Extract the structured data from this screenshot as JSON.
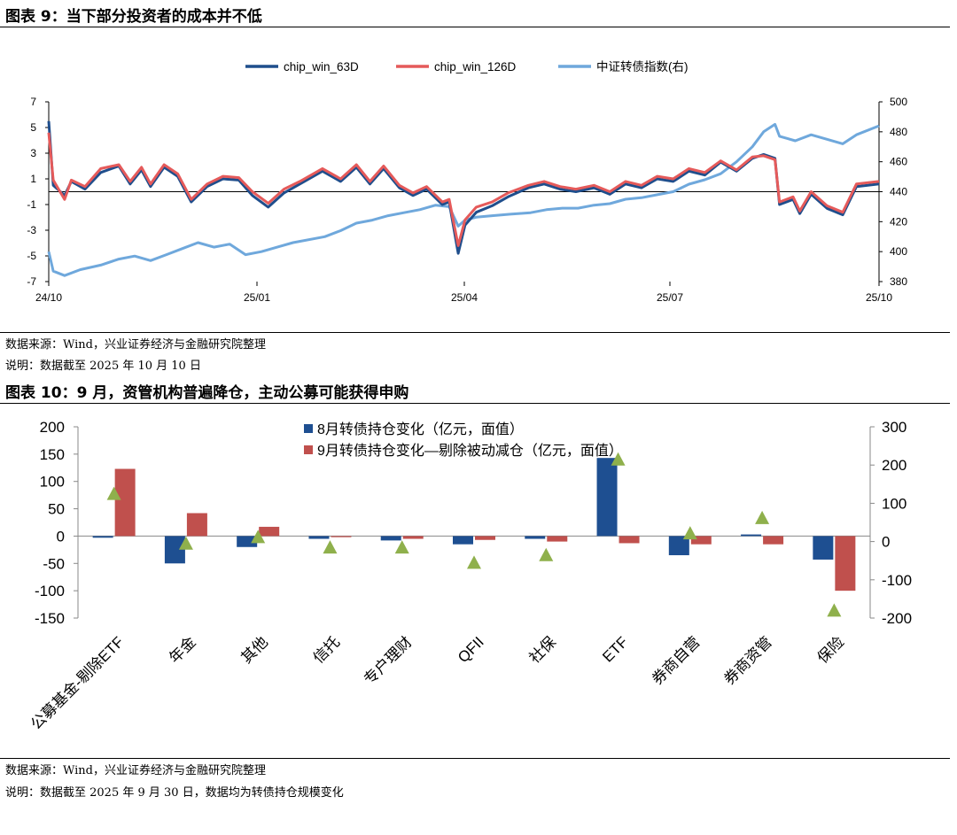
{
  "figure9": {
    "title": "图表 9：当下部分投资者的成本并不低",
    "source": "数据来源：Wind，兴业证券经济与金融研究院整理",
    "note": "说明：数据截至 2025 年 10 月 10 日"
  },
  "figure10": {
    "title": "图表 10：9 月，资管机构普遍降仓，主动公募可能获得申购",
    "source": "数据来源：Wind，兴业证券经济与金融研究院整理",
    "note": "说明：数据截至 2025 年 9 月 30 日，数据均为转债持仓规模变化"
  },
  "chart_data": [
    {
      "type": "line",
      "x_ticks": [
        "24/10",
        "25/01",
        "25/04",
        "25/07",
        "25/10"
      ],
      "xlim": [
        "2024-10-08",
        "2025-10-10"
      ],
      "ylim": [
        -7,
        7
      ],
      "y_ticks": [
        -7,
        -5,
        -3,
        -1,
        1,
        3,
        5,
        7
      ],
      "y2lim": [
        380,
        500
      ],
      "y2_ticks": [
        380,
        400,
        420,
        440,
        460,
        480,
        500
      ],
      "legend_position": "top-center",
      "grid": false,
      "series": [
        {
          "name": "chip_win_63D",
          "axis": "left",
          "color": "#1f4e8c",
          "points": [
            [
              "2024-10-08",
              5.5
            ],
            [
              "2024-10-10",
              0.5
            ],
            [
              "2024-10-15",
              -0.3
            ],
            [
              "2024-10-18",
              0.8
            ],
            [
              "2024-10-24",
              0.2
            ],
            [
              "2024-10-31",
              1.5
            ],
            [
              "2024-11-08",
              2.0
            ],
            [
              "2024-11-13",
              0.6
            ],
            [
              "2024-11-18",
              1.7
            ],
            [
              "2024-11-22",
              0.4
            ],
            [
              "2024-11-28",
              1.9
            ],
            [
              "2024-12-04",
              1.2
            ],
            [
              "2024-12-10",
              -0.8
            ],
            [
              "2024-12-17",
              0.4
            ],
            [
              "2024-12-24",
              1.0
            ],
            [
              "2024-12-31",
              0.9
            ],
            [
              "2025-01-06",
              -0.3
            ],
            [
              "2025-01-13",
              -1.2
            ],
            [
              "2025-01-20",
              -0.1
            ],
            [
              "2025-01-27",
              0.6
            ],
            [
              "2025-02-06",
              1.6
            ],
            [
              "2025-02-14",
              0.8
            ],
            [
              "2025-02-21",
              1.9
            ],
            [
              "2025-02-27",
              0.6
            ],
            [
              "2025-03-05",
              1.8
            ],
            [
              "2025-03-12",
              0.3
            ],
            [
              "2025-03-18",
              -0.3
            ],
            [
              "2025-03-24",
              0.2
            ],
            [
              "2025-03-31",
              -1.0
            ],
            [
              "2025-04-03",
              -0.8
            ],
            [
              "2025-04-07",
              -4.8
            ],
            [
              "2025-04-10",
              -2.6
            ],
            [
              "2025-04-15",
              -1.6
            ],
            [
              "2025-04-22",
              -1.1
            ],
            [
              "2025-04-29",
              -0.4
            ],
            [
              "2025-05-08",
              0.3
            ],
            [
              "2025-05-15",
              0.6
            ],
            [
              "2025-05-22",
              0.2
            ],
            [
              "2025-05-29",
              0.0
            ],
            [
              "2025-06-06",
              0.3
            ],
            [
              "2025-06-13",
              -0.2
            ],
            [
              "2025-06-20",
              0.6
            ],
            [
              "2025-06-27",
              0.3
            ],
            [
              "2025-07-04",
              1.0
            ],
            [
              "2025-07-11",
              0.8
            ],
            [
              "2025-07-18",
              1.6
            ],
            [
              "2025-07-25",
              1.3
            ],
            [
              "2025-08-01",
              2.3
            ],
            [
              "2025-08-08",
              1.6
            ],
            [
              "2025-08-15",
              2.6
            ],
            [
              "2025-08-20",
              2.9
            ],
            [
              "2025-08-25",
              2.6
            ],
            [
              "2025-08-27",
              -1.0
            ],
            [
              "2025-09-02",
              -0.6
            ],
            [
              "2025-09-05",
              -1.7
            ],
            [
              "2025-09-10",
              -0.2
            ],
            [
              "2025-09-17",
              -1.3
            ],
            [
              "2025-09-24",
              -1.8
            ],
            [
              "2025-09-30",
              0.4
            ],
            [
              "2025-10-10",
              0.6
            ]
          ]
        },
        {
          "name": "chip_win_126D",
          "axis": "left",
          "color": "#e55a5a",
          "points": [
            [
              "2024-10-08",
              4.6
            ],
            [
              "2024-10-10",
              0.9
            ],
            [
              "2024-10-15",
              -0.6
            ],
            [
              "2024-10-18",
              0.9
            ],
            [
              "2024-10-24",
              0.4
            ],
            [
              "2024-10-31",
              1.8
            ],
            [
              "2024-11-08",
              2.1
            ],
            [
              "2024-11-13",
              0.8
            ],
            [
              "2024-11-18",
              1.9
            ],
            [
              "2024-11-22",
              0.6
            ],
            [
              "2024-11-28",
              2.1
            ],
            [
              "2024-12-04",
              1.4
            ],
            [
              "2024-12-10",
              -0.6
            ],
            [
              "2024-12-17",
              0.6
            ],
            [
              "2024-12-24",
              1.2
            ],
            [
              "2024-12-31",
              1.1
            ],
            [
              "2025-01-06",
              0.0
            ],
            [
              "2025-01-13",
              -0.9
            ],
            [
              "2025-01-20",
              0.2
            ],
            [
              "2025-01-27",
              0.8
            ],
            [
              "2025-02-06",
              1.8
            ],
            [
              "2025-02-14",
              1.0
            ],
            [
              "2025-02-21",
              2.1
            ],
            [
              "2025-02-27",
              0.8
            ],
            [
              "2025-03-05",
              2.0
            ],
            [
              "2025-03-12",
              0.5
            ],
            [
              "2025-03-18",
              -0.1
            ],
            [
              "2025-03-24",
              0.4
            ],
            [
              "2025-03-31",
              -0.8
            ],
            [
              "2025-04-03",
              -0.6
            ],
            [
              "2025-04-07",
              -4.2
            ],
            [
              "2025-04-10",
              -2.2
            ],
            [
              "2025-04-15",
              -1.2
            ],
            [
              "2025-04-22",
              -0.8
            ],
            [
              "2025-04-29",
              -0.1
            ],
            [
              "2025-05-08",
              0.5
            ],
            [
              "2025-05-15",
              0.8
            ],
            [
              "2025-05-22",
              0.4
            ],
            [
              "2025-05-29",
              0.2
            ],
            [
              "2025-06-06",
              0.5
            ],
            [
              "2025-06-13",
              0.0
            ],
            [
              "2025-06-20",
              0.8
            ],
            [
              "2025-06-27",
              0.5
            ],
            [
              "2025-07-04",
              1.2
            ],
            [
              "2025-07-11",
              1.0
            ],
            [
              "2025-07-18",
              1.8
            ],
            [
              "2025-07-25",
              1.5
            ],
            [
              "2025-08-01",
              2.4
            ],
            [
              "2025-08-08",
              1.7
            ],
            [
              "2025-08-15",
              2.7
            ],
            [
              "2025-08-20",
              2.8
            ],
            [
              "2025-08-25",
              2.5
            ],
            [
              "2025-08-27",
              -0.8
            ],
            [
              "2025-09-02",
              -0.4
            ],
            [
              "2025-09-05",
              -1.5
            ],
            [
              "2025-09-10",
              0.0
            ],
            [
              "2025-09-17",
              -1.1
            ],
            [
              "2025-09-24",
              -1.6
            ],
            [
              "2025-09-30",
              0.6
            ],
            [
              "2025-10-10",
              0.8
            ]
          ]
        },
        {
          "name": "中证转债指数(右)",
          "axis": "right",
          "color": "#6fa8dc",
          "points": [
            [
              "2024-10-08",
              400
            ],
            [
              "2024-10-10",
              387
            ],
            [
              "2024-10-15",
              384
            ],
            [
              "2024-10-22",
              388
            ],
            [
              "2024-10-31",
              391
            ],
            [
              "2024-11-08",
              395
            ],
            [
              "2024-11-15",
              397
            ],
            [
              "2024-11-22",
              394
            ],
            [
              "2024-11-29",
              398
            ],
            [
              "2024-12-06",
              402
            ],
            [
              "2024-12-13",
              406
            ],
            [
              "2024-12-20",
              403
            ],
            [
              "2024-12-27",
              405
            ],
            [
              "2025-01-03",
              398
            ],
            [
              "2025-01-10",
              400
            ],
            [
              "2025-01-17",
              403
            ],
            [
              "2025-01-24",
              406
            ],
            [
              "2025-02-07",
              410
            ],
            [
              "2025-02-14",
              414
            ],
            [
              "2025-02-21",
              419
            ],
            [
              "2025-02-28",
              421
            ],
            [
              "2025-03-07",
              424
            ],
            [
              "2025-03-14",
              426
            ],
            [
              "2025-03-21",
              428
            ],
            [
              "2025-03-28",
              431
            ],
            [
              "2025-04-03",
              430
            ],
            [
              "2025-04-07",
              417
            ],
            [
              "2025-04-10",
              421
            ],
            [
              "2025-04-15",
              423
            ],
            [
              "2025-04-22",
              424
            ],
            [
              "2025-04-30",
              425
            ],
            [
              "2025-05-09",
              426
            ],
            [
              "2025-05-16",
              428
            ],
            [
              "2025-05-23",
              429
            ],
            [
              "2025-05-30",
              429
            ],
            [
              "2025-06-06",
              431
            ],
            [
              "2025-06-13",
              432
            ],
            [
              "2025-06-20",
              435
            ],
            [
              "2025-06-27",
              436
            ],
            [
              "2025-07-04",
              438
            ],
            [
              "2025-07-11",
              440
            ],
            [
              "2025-07-18",
              445
            ],
            [
              "2025-07-25",
              448
            ],
            [
              "2025-08-01",
              452
            ],
            [
              "2025-08-08",
              460
            ],
            [
              "2025-08-15",
              470
            ],
            [
              "2025-08-20",
              480
            ],
            [
              "2025-08-25",
              485
            ],
            [
              "2025-08-27",
              477
            ],
            [
              "2025-09-03",
              474
            ],
            [
              "2025-09-10",
              478
            ],
            [
              "2025-09-17",
              475
            ],
            [
              "2025-09-24",
              472
            ],
            [
              "2025-09-30",
              478
            ],
            [
              "2025-10-10",
              484
            ]
          ]
        }
      ]
    },
    {
      "type": "bar",
      "categories": [
        "公募基金-剔除ETF",
        "年金",
        "其他",
        "信托",
        "专户理财",
        "QFII",
        "社保",
        "ETF",
        "券商自营",
        "券商资管",
        "保险"
      ],
      "ylim": [
        -150,
        200
      ],
      "y_ticks": [
        -150,
        -100,
        -50,
        0,
        50,
        100,
        150,
        200
      ],
      "y2lim": [
        -200,
        300
      ],
      "y2_ticks": [
        -200,
        -100,
        0,
        100,
        200,
        300
      ],
      "legend_position": "top-center",
      "grid": false,
      "series": [
        {
          "name": "8月转债持仓变化（亿元，面值）",
          "type": "bar",
          "axis": "left",
          "color": "#1e4f91",
          "values": [
            -3,
            -50,
            -20,
            -5,
            -8,
            -15,
            -5,
            143,
            -35,
            3,
            -43
          ]
        },
        {
          "name": "9月转债持仓变化—剔除被动减仓（亿元，面值）",
          "type": "bar",
          "axis": "left",
          "color": "#c0504d",
          "values": [
            123,
            42,
            17,
            -2,
            -5,
            -7,
            -10,
            -13,
            -15,
            -15,
            -100
          ]
        },
        {
          "name": "",
          "type": "triangle",
          "axis": "right",
          "color": "#8fb04c",
          "values": [
            125,
            -5,
            12,
            -15,
            -15,
            -55,
            -35,
            215,
            22,
            62,
            -180
          ]
        }
      ]
    }
  ]
}
